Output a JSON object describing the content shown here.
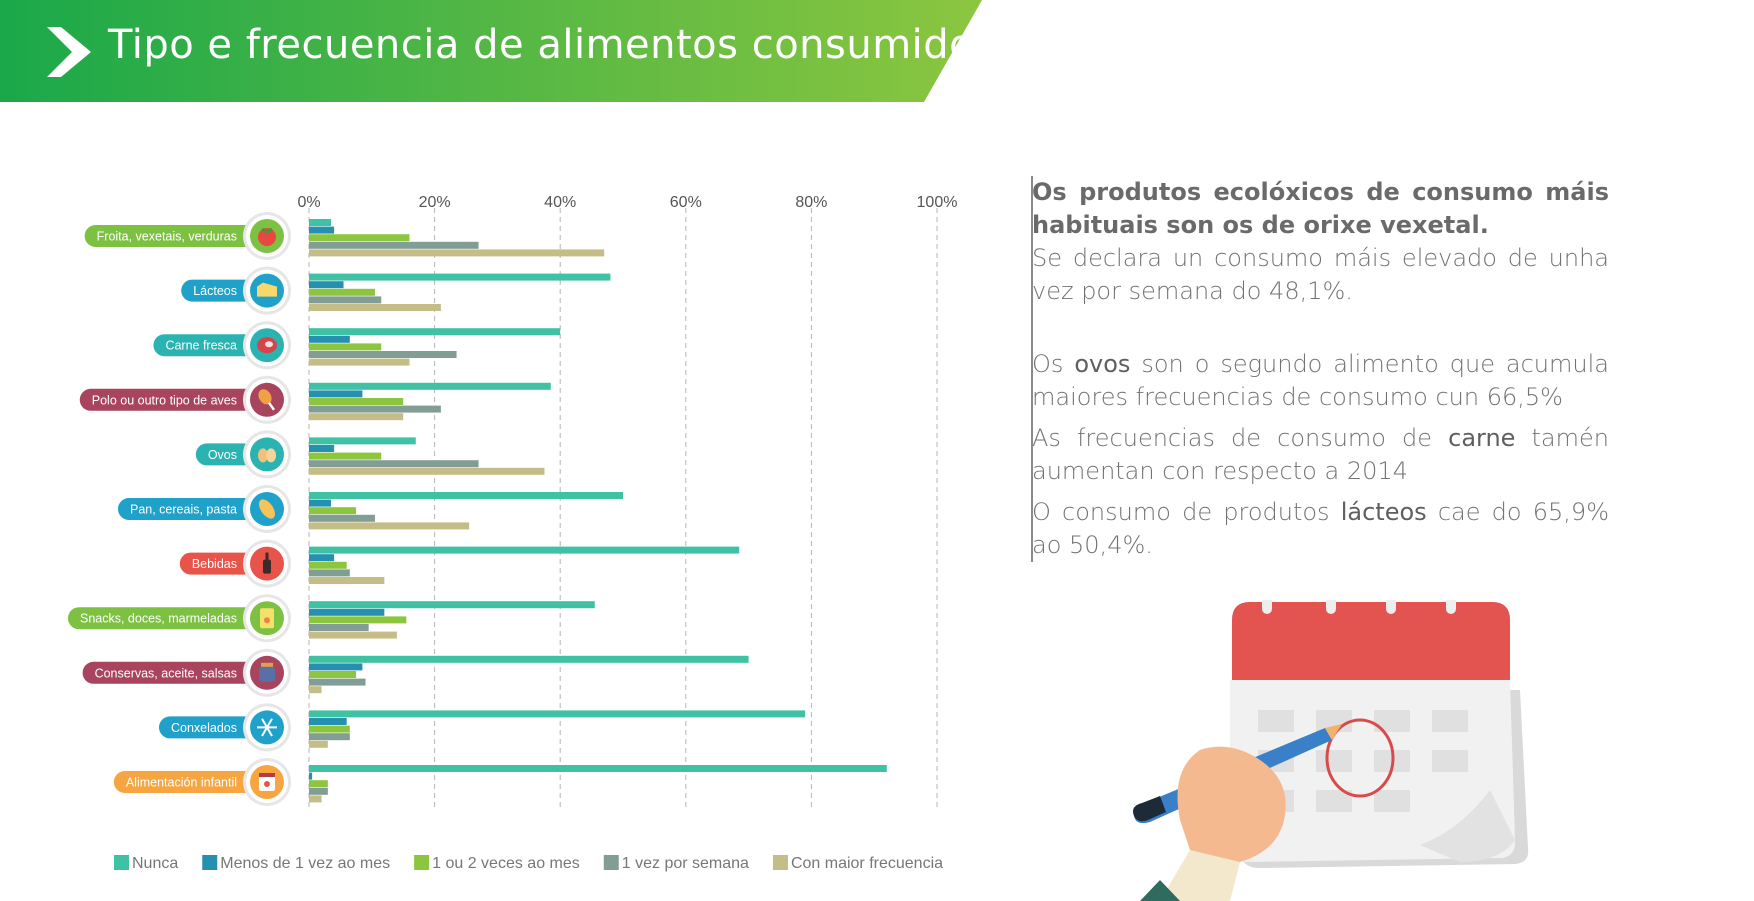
{
  "header": {
    "title": "Tipo e frecuencia de alimentos consumidos",
    "gradient_start": "#1aa84a",
    "gradient_end": "#8cc63f"
  },
  "chart_data": {
    "type": "bar",
    "orientation": "horizontal",
    "x_ticks": [
      "0%",
      "20%",
      "40%",
      "60%",
      "80%",
      "100%"
    ],
    "xlim": [
      0,
      100
    ],
    "grid": "vertical dashed",
    "legend_position": "bottom",
    "categories": [
      {
        "label": "Froita, vexetais, verduras",
        "color": "#7dc142",
        "icon": "tomato-icon"
      },
      {
        "label": "Lácteos",
        "color": "#1fa1c9",
        "icon": "cheese-icon"
      },
      {
        "label": "Carne fresca",
        "color": "#2bb3b1",
        "icon": "steak-icon"
      },
      {
        "label": "Polo ou outro tipo de aves",
        "color": "#a9445e",
        "icon": "chicken-leg-icon"
      },
      {
        "label": "Ovos",
        "color": "#2bb3b1",
        "icon": "eggs-icon"
      },
      {
        "label": "Pan, cereais, pasta",
        "color": "#1fa1c9",
        "icon": "bread-icon"
      },
      {
        "label": "Bebidas",
        "color": "#e8534a",
        "icon": "bottle-icon"
      },
      {
        "label": "Snacks, doces, marmeladas",
        "color": "#7dc142",
        "icon": "snack-bag-icon"
      },
      {
        "label": "Conservas, aceite, salsas",
        "color": "#a9445e",
        "icon": "jar-icon"
      },
      {
        "label": "Conxelados",
        "color": "#1fa1c9",
        "icon": "snowflake-icon"
      },
      {
        "label": "Alimentación infantil",
        "color": "#f7a541",
        "icon": "baby-food-icon"
      }
    ],
    "series": [
      {
        "name": "Nunca",
        "color": "#3fc1a3",
        "values": [
          3.5,
          48,
          40,
          38.5,
          17,
          50,
          68.5,
          45.5,
          70,
          79,
          92
        ]
      },
      {
        "name": "Menos de 1 vez ao mes",
        "color": "#2690b0",
        "values": [
          4,
          5.5,
          6.5,
          8.5,
          4,
          3.5,
          4,
          12,
          8.5,
          6,
          0.5
        ]
      },
      {
        "name": "1 ou 2 veces ao mes",
        "color": "#8cc63f",
        "values": [
          16,
          10.5,
          11.5,
          15,
          11.5,
          7.5,
          6,
          15.5,
          7.5,
          6.5,
          3
        ]
      },
      {
        "name": "1 vez por semana",
        "color": "#829d93",
        "values": [
          27,
          11.5,
          23.5,
          21,
          27,
          10.5,
          6.5,
          9.5,
          9,
          6.5,
          3
        ]
      },
      {
        "name": "Con maior frecuencia",
        "color": "#c5bd87",
        "values": [
          47,
          21,
          16,
          15,
          37.5,
          25.5,
          12,
          14,
          2,
          3,
          2
        ]
      }
    ]
  },
  "text_panel": {
    "p1_bold": "Os produtos ecolóxicos de consumo máis habituais son os de orixe vexetal.",
    "p1_rest": "Se declara un consumo máis elevado de unha vez por semana do 48,1%.",
    "p2_a": "Os ",
    "p2_bold": "ovos",
    "p2_b": " son o segundo alimento que acumula maiores frecuencias de consumo cun 66,5%",
    "p3_a": "As frecuencias de consumo de ",
    "p3_bold": "carne",
    "p3_b": " tamén aumentan con respecto a 2014",
    "p4_a": "O consumo de produtos ",
    "p4_bold": "lácteos",
    "p4_b": " cae do 65,9% ao 50,4%."
  }
}
